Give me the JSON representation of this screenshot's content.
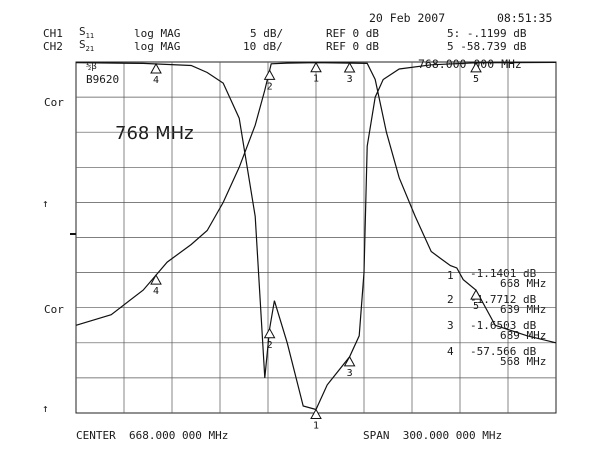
{
  "header": {
    "date": "20 Feb 2007",
    "time": "08:51:35",
    "ch1_label": "CH1",
    "ch1_param": "S",
    "ch1_sub": "11",
    "ch1_format": "log MAG",
    "ch1_scale": "5 dB/",
    "ch1_ref": "REF 0 dB",
    "ch1_marker": "5: -.1199 dB",
    "ch2_label": "CH2",
    "ch2_param": "S",
    "ch2_sub": "21",
    "ch2_format": "log MAG",
    "ch2_scale": "10 dB/",
    "ch2_ref": "REF 0 dB",
    "ch2_marker": "5 -58.739 dB"
  },
  "side": {
    "avg_label": "½β",
    "avg_value": "B9620",
    "cor_top": "Cor",
    "cor_bottom": "Cor"
  },
  "active_marker_freq": "768.000 000 MHz",
  "handwritten_note": "768 MHz",
  "marker_table": [
    {
      "num": "1",
      "value": "-1.1401 dB",
      "freq": "668 MHz"
    },
    {
      "num": "2",
      "value": "-1.7712 dB",
      "freq": "639 MHz"
    },
    {
      "num": "3",
      "value": "-1.6503 dB",
      "freq": "689 MHz"
    },
    {
      "num": "4",
      "value": "-57.566 dB",
      "freq": "568 MHz"
    }
  ],
  "footer": {
    "center": "CENTER  668.000 000 MHz",
    "span": "SPAN  300.000 000 MHz"
  },
  "chart_data": {
    "type": "line",
    "x_unit": "MHz",
    "xlim": [
      518,
      818
    ],
    "center_mhz": 668,
    "span_mhz": 300,
    "grid": true,
    "series": [
      {
        "name": "S21",
        "ylim": [
          -100,
          0
        ],
        "x": [
          518,
          540,
          560,
          575,
          590,
          600,
          610,
          620,
          630,
          636,
          640,
          650,
          668,
          690,
          700,
          705,
          712,
          720,
          730,
          740,
          746,
          752,
          756,
          760,
          768,
          780,
          800,
          818
        ],
        "y": [
          -75,
          -72,
          -65,
          -57,
          -52,
          -48,
          -40,
          -30,
          -18,
          -8,
          -0.5,
          -0.3,
          -0.2,
          -0.3,
          -0.4,
          -5,
          -20,
          -33,
          -44,
          -54,
          -56,
          -58,
          -58.7,
          -62,
          -65,
          -75,
          -78,
          -80
        ]
      },
      {
        "name": "S11",
        "ylim": [
          -50,
          0
        ],
        "x": [
          518,
          560,
          590,
          600,
          610,
          620,
          630,
          636,
          639,
          642,
          650,
          660,
          668,
          675,
          689,
          695,
          698,
          700,
          705,
          710,
          720,
          740,
          768,
          818
        ],
        "y": [
          -0.1,
          -0.2,
          -0.5,
          -1.5,
          -3,
          -8,
          -22,
          -45,
          -38,
          -34,
          -40,
          -49,
          -49.5,
          -46,
          -42,
          -39,
          -30,
          -12,
          -5,
          -2.5,
          -1,
          -0.4,
          -0.12,
          -0.05
        ]
      }
    ],
    "markers": [
      {
        "id": "1",
        "x": 668
      },
      {
        "id": "2",
        "x": 639
      },
      {
        "id": "3",
        "x": 689
      },
      {
        "id": "4",
        "x": 568
      },
      {
        "id": "5",
        "x": 768
      }
    ]
  }
}
